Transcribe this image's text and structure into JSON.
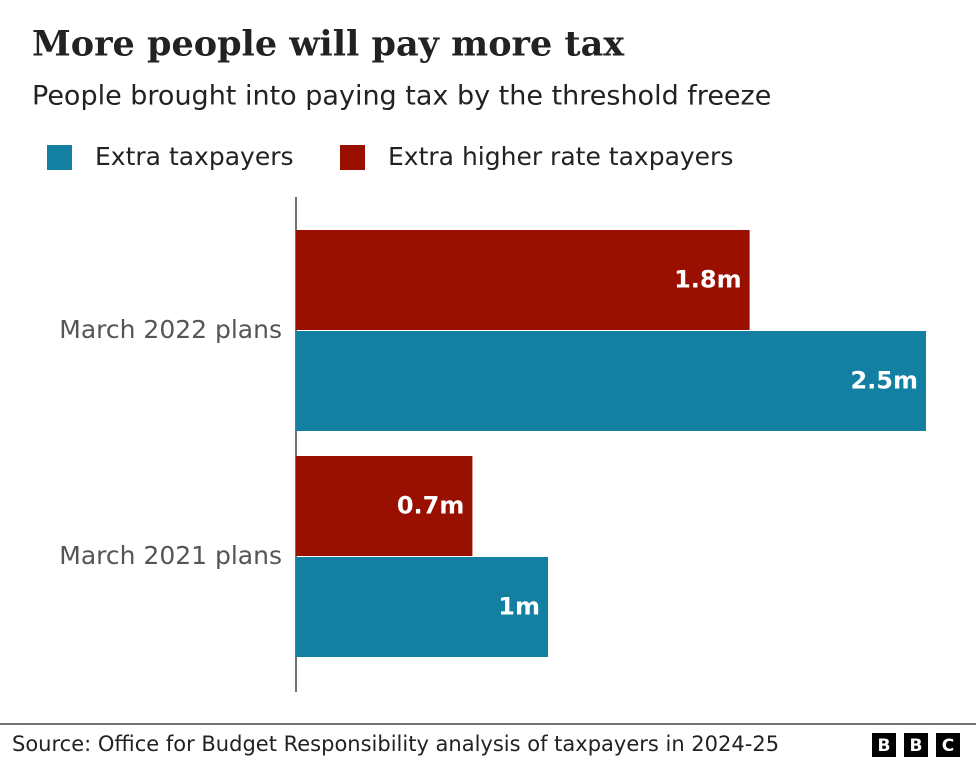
{
  "chart_data": {
    "type": "bar",
    "orientation": "horizontal",
    "title": "More people will pay more tax",
    "subtitle": "People brought into paying tax by the threshold freeze",
    "categories": [
      "March 2022 plans",
      "March 2021 plans"
    ],
    "series": [
      {
        "name": "Extra taxpayers",
        "color": "#1380a1",
        "values": [
          2.5,
          1
        ],
        "value_labels": [
          "2.5m",
          "1m"
        ]
      },
      {
        "name": "Extra higher rate taxpayers",
        "color": "#990f00",
        "values": [
          1.8,
          0.7
        ],
        "value_labels": [
          "1.8m",
          "0.7m"
        ]
      }
    ],
    "xlim": [
      0,
      2.5
    ],
    "source": "Source: Office for Budget Responsibility analysis of taxpayers in 2024-25",
    "logo": [
      "B",
      "B",
      "C"
    ]
  }
}
